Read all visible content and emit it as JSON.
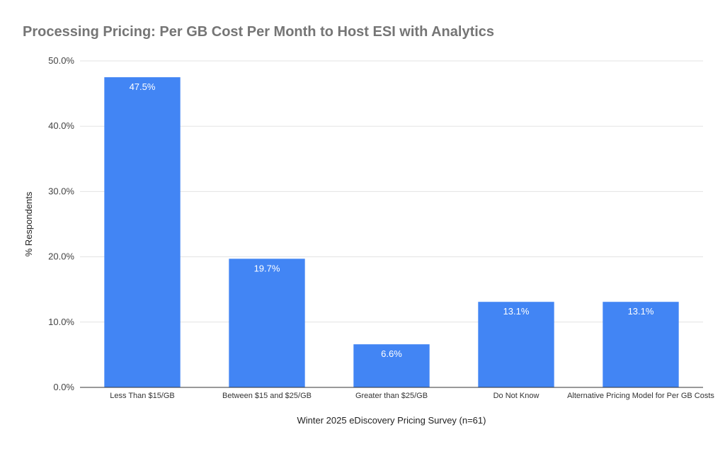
{
  "chart_data": {
    "type": "bar",
    "title": "Processing Pricing: Per GB Cost Per Month to Host ESI with Analytics",
    "xlabel": "Winter 2025 eDiscovery Pricing Survey (n=61)",
    "ylabel": "% Respondents",
    "categories": [
      "Less Than $15/GB",
      "Between $15 and $25/GB",
      "Greater than $25/GB",
      "Do Not Know",
      "Alternative Pricing Model for Per GB Costs"
    ],
    "values": [
      47.5,
      19.7,
      6.6,
      13.1,
      13.1
    ],
    "value_labels": [
      "47.5%",
      "19.7%",
      "6.6%",
      "13.1%",
      "13.1%"
    ],
    "ylim": [
      0,
      50
    ],
    "yticks": [
      0,
      10,
      20,
      30,
      40,
      50
    ],
    "ytick_labels": [
      "0.0%",
      "10.0%",
      "20.0%",
      "30.0%",
      "40.0%",
      "50.0%"
    ],
    "grid": true,
    "legend": "none",
    "bar_color": "#4285f4"
  }
}
